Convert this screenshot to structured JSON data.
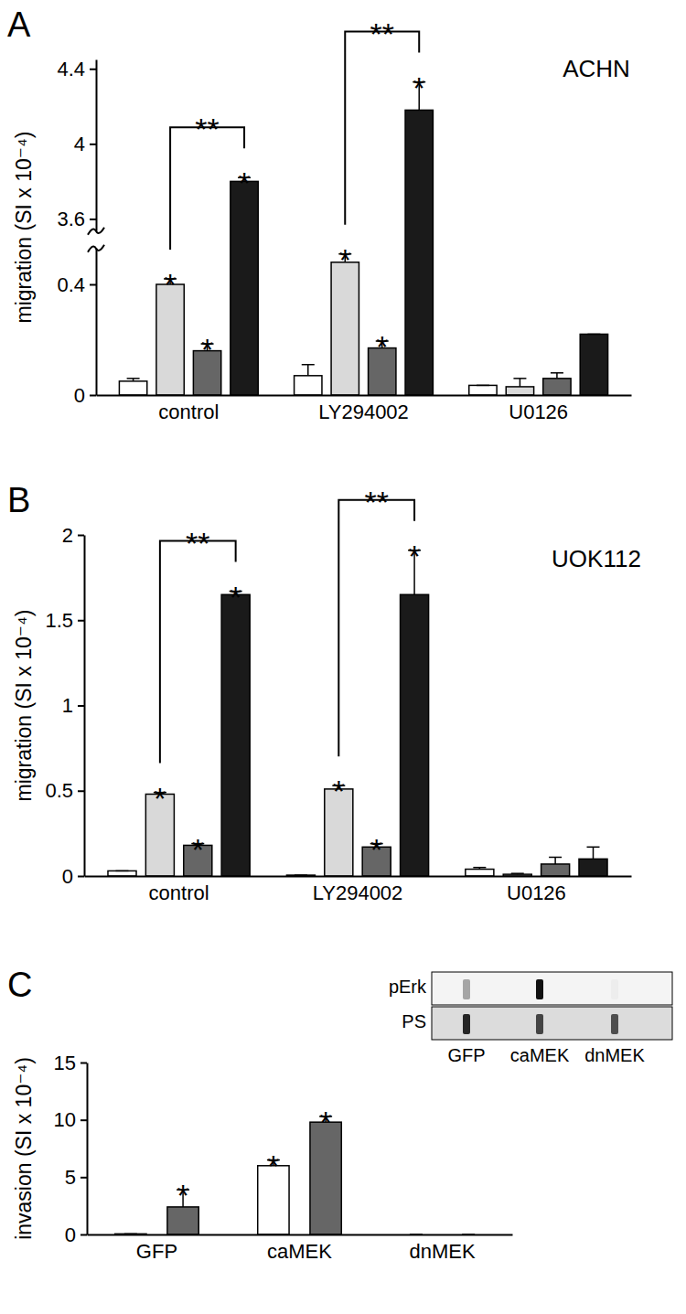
{
  "chart_data": [
    {
      "panel": "A",
      "type": "bar",
      "title": "ACHN",
      "ylabel": "migration (SI x 10⁻⁴)",
      "categories": [
        "control",
        "LY294002",
        "U0126"
      ],
      "ylim": [
        0,
        4.45
      ],
      "ybreak": [
        0.52,
        3.55
      ],
      "yticks": [
        0,
        0.4,
        3.6,
        4,
        4.4
      ],
      "series": [
        {
          "color": "#ffffff",
          "values": [
            0.05,
            0.07,
            0.035
          ],
          "errors": [
            0.01,
            0.04,
            0
          ],
          "significance": [
            null,
            null,
            null
          ]
        },
        {
          "color": "#d9d9d9",
          "values": [
            0.4,
            0.48,
            0.03
          ],
          "errors": [
            0.02,
            0.03,
            0.03
          ],
          "significance": [
            "*",
            "*",
            null
          ]
        },
        {
          "color": "#666666",
          "values": [
            0.16,
            0.17,
            0.06
          ],
          "errors": [
            0.025,
            0.025,
            0.02
          ],
          "significance": [
            "*",
            "*",
            null
          ]
        },
        {
          "color": "#1a1a1a",
          "values": [
            3.8,
            4.18,
            0.22
          ],
          "errors": [
            0.02,
            0.15,
            0
          ],
          "significance": [
            "*",
            "*",
            null
          ]
        }
      ],
      "brackets": [
        {
          "text": "**",
          "category": 0,
          "from": 1,
          "to": 3
        },
        {
          "text": "**",
          "category": 1,
          "from": 1,
          "to": 3
        }
      ]
    },
    {
      "panel": "B",
      "type": "bar",
      "title": "UOK112",
      "ylabel": "migration (SI x 10⁻⁴)",
      "categories": [
        "control",
        "LY294002",
        "U0126"
      ],
      "ylim": [
        0,
        2
      ],
      "yticks": [
        0,
        0.5,
        1,
        1.5,
        2
      ],
      "series": [
        {
          "color": "#ffffff",
          "values": [
            0.03,
            0.005,
            0.04
          ],
          "errors": [
            0,
            0,
            0.01
          ],
          "significance": [
            null,
            null,
            null
          ]
        },
        {
          "color": "#d9d9d9",
          "values": [
            0.48,
            0.51,
            0.01
          ],
          "errors": [
            0.01,
            0.02,
            0.005
          ],
          "significance": [
            "*",
            "*",
            null
          ]
        },
        {
          "color": "#666666",
          "values": [
            0.18,
            0.17,
            0.07
          ],
          "errors": [
            0.01,
            0.02,
            0.04
          ],
          "significance": [
            "*",
            "*",
            null
          ]
        },
        {
          "color": "#1a1a1a",
          "values": [
            1.65,
            1.65,
            0.1
          ],
          "errors": [
            0.02,
            0.26,
            0.07
          ],
          "significance": [
            "*",
            "*",
            null
          ]
        }
      ],
      "brackets": [
        {
          "text": "**",
          "category": 0,
          "from": 1,
          "to": 3
        },
        {
          "text": "**",
          "category": 1,
          "from": 1,
          "to": 3
        }
      ]
    },
    {
      "panel": "C",
      "type": "bar",
      "ylabel": "invasion (SI x 10⁻⁴)",
      "categories": [
        "GFP",
        "caMEK",
        "dnMEK"
      ],
      "ylim": [
        0,
        15
      ],
      "yticks": [
        0,
        5,
        10,
        15
      ],
      "series": [
        {
          "color": "#ffffff",
          "values": [
            0.05,
            6.0,
            0
          ],
          "errors": [
            0,
            0.5,
            0
          ],
          "significance": [
            null,
            "*",
            null
          ]
        },
        {
          "color": "#666666",
          "values": [
            2.4,
            9.8,
            0
          ],
          "errors": [
            1.5,
            0.5,
            0
          ],
          "significance": [
            "*",
            "*",
            null
          ]
        }
      ],
      "inset": {
        "rows": [
          "pErk",
          "PS"
        ],
        "lanes": [
          "GFP",
          "caMEK",
          "dnMEK"
        ]
      }
    }
  ]
}
